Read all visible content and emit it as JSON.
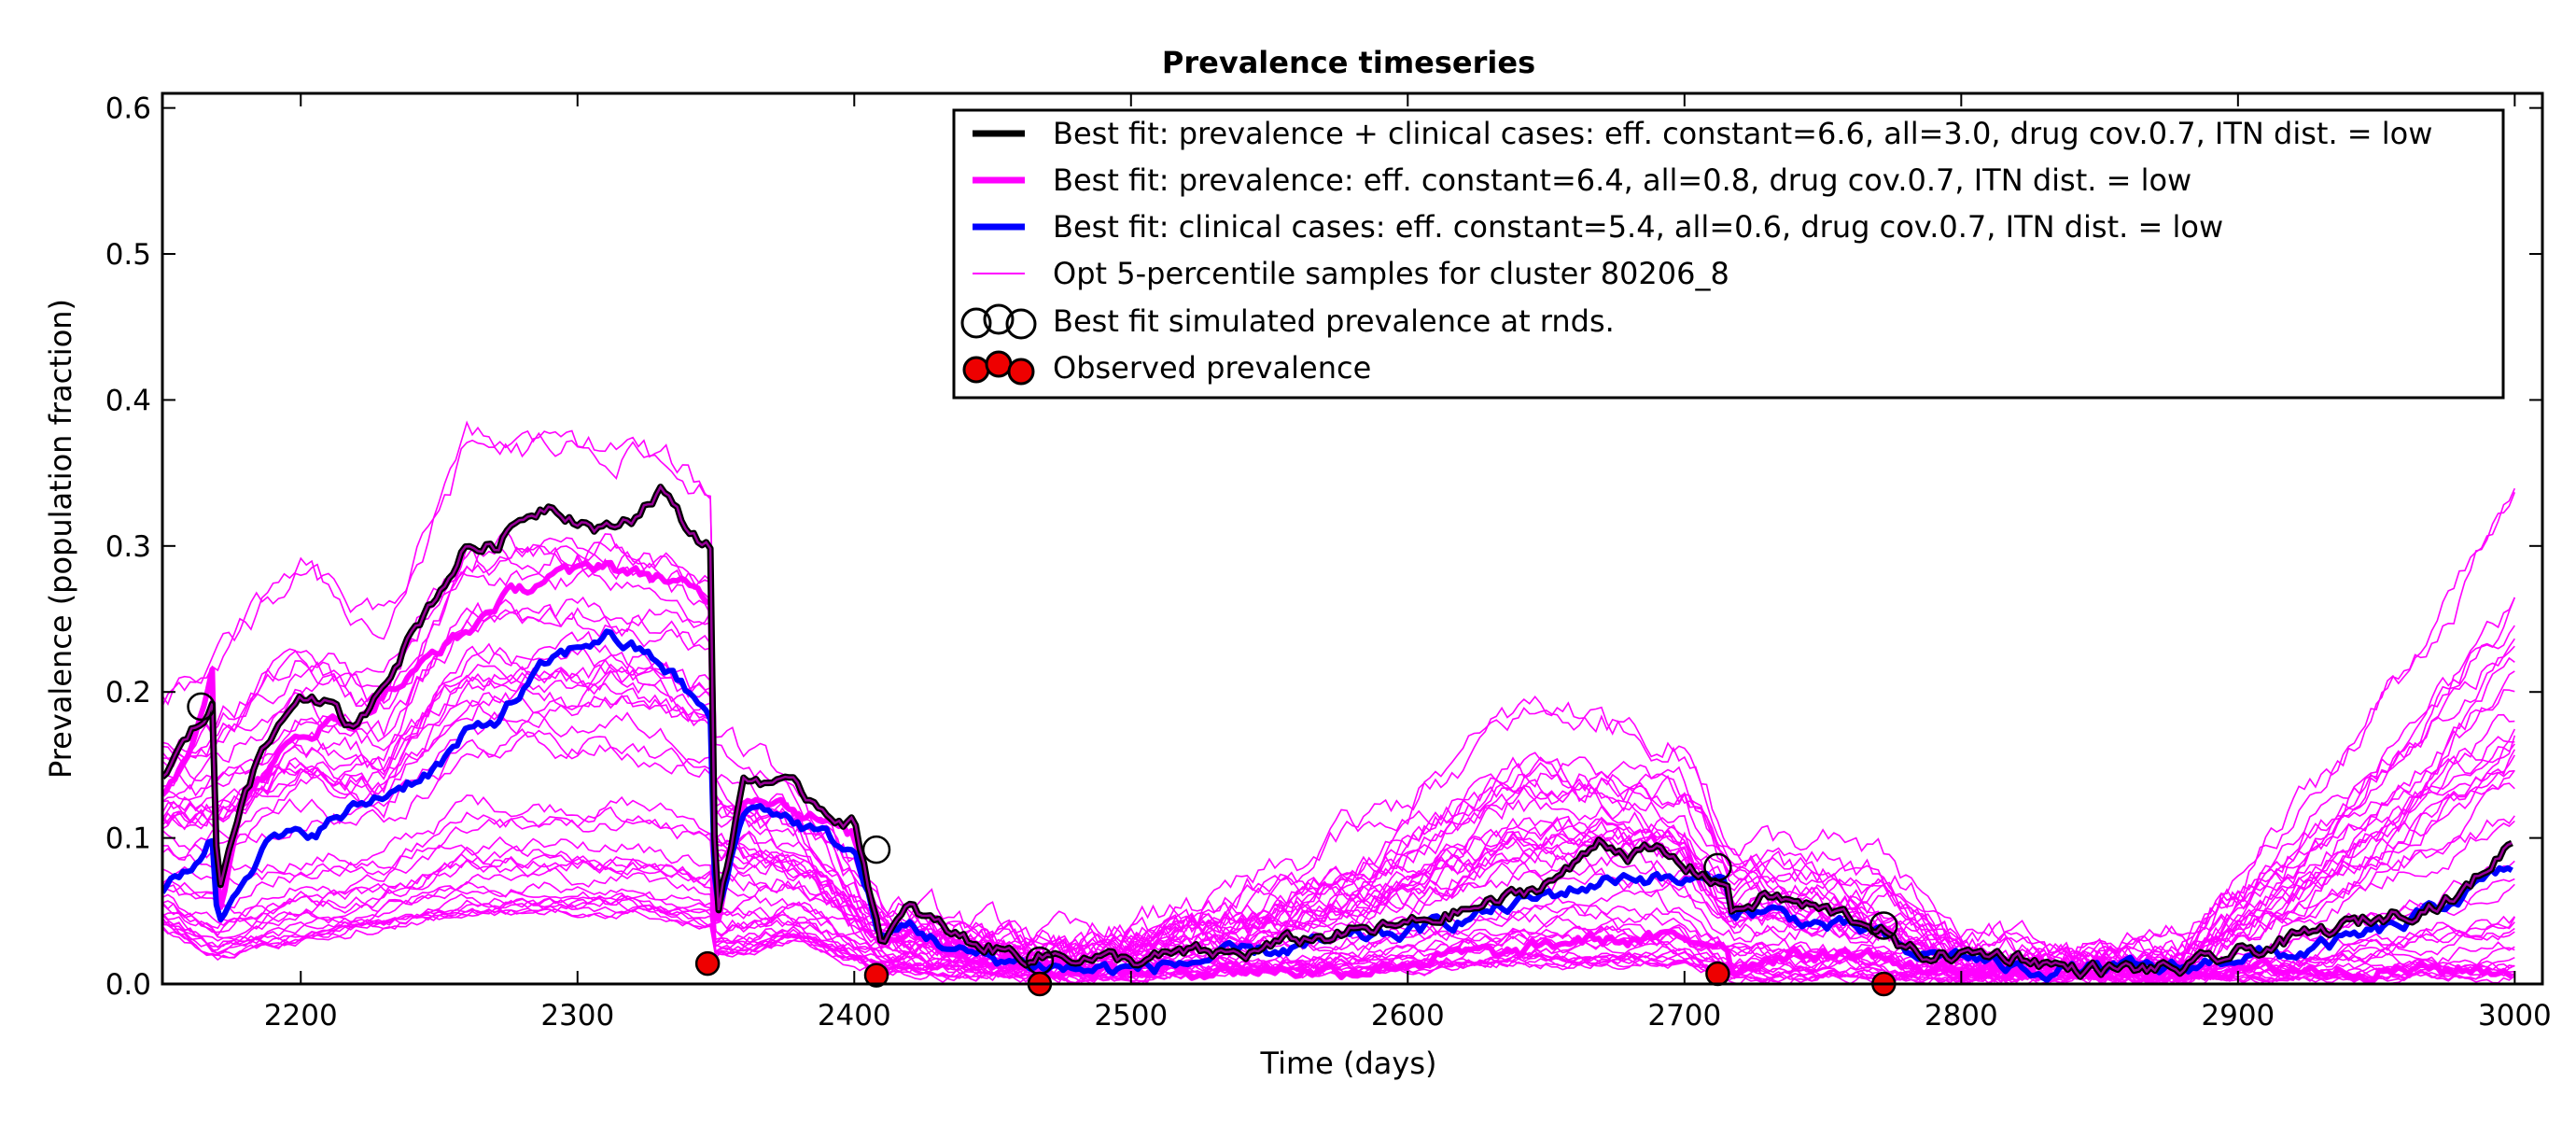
{
  "chart_data": {
    "type": "line",
    "title": "Prevalence timeseries",
    "xlabel": "Time (days)",
    "ylabel": "Prevalence (population fraction)",
    "xlim": [
      2150,
      3010
    ],
    "ylim": [
      0.0,
      0.61
    ],
    "x_ticks": [
      2200,
      2300,
      2400,
      2500,
      2600,
      2700,
      2800,
      2900,
      3000
    ],
    "y_ticks": [
      0.0,
      0.1,
      0.2,
      0.3,
      0.4,
      0.5,
      0.6
    ],
    "grid": false,
    "legend_position": "top-right",
    "colors": {
      "best_fit_combined": "#000000",
      "best_fit_prevalence": "#ff00ff",
      "best_fit_clinical": "#0000ff",
      "samples": "#ff00ff",
      "observed": "#ee0000"
    },
    "series": [
      {
        "name": "Best fit: prevalence + clinical cases: eff. constant=6.6, all=3.0, drug cov.0.7, ITN dist. = low",
        "style": "thick-black",
        "x": [
          2150,
          2160,
          2168,
          2170,
          2180,
          2190,
          2200,
          2210,
          2220,
          2230,
          2240,
          2250,
          2260,
          2270,
          2280,
          2290,
          2300,
          2310,
          2320,
          2330,
          2340,
          2348,
          2350,
          2360,
          2370,
          2380,
          2390,
          2400,
          2410,
          2420,
          2440,
          2460,
          2480,
          2500,
          2520,
          2540,
          2560,
          2580,
          2600,
          2620,
          2640,
          2660,
          2670,
          2680,
          2690,
          2700,
          2715,
          2717,
          2730,
          2750,
          2770,
          2780,
          2800,
          2820,
          2840,
          2860,
          2880,
          2900,
          2920,
          2940,
          2960,
          2980,
          2990,
          3000
        ],
        "y": [
          0.14,
          0.17,
          0.19,
          0.06,
          0.14,
          0.17,
          0.2,
          0.19,
          0.17,
          0.21,
          0.24,
          0.27,
          0.3,
          0.3,
          0.32,
          0.33,
          0.32,
          0.31,
          0.32,
          0.34,
          0.31,
          0.3,
          0.04,
          0.14,
          0.14,
          0.13,
          0.12,
          0.11,
          0.03,
          0.05,
          0.03,
          0.02,
          0.02,
          0.015,
          0.02,
          0.02,
          0.03,
          0.035,
          0.04,
          0.05,
          0.06,
          0.08,
          0.1,
          0.09,
          0.09,
          0.08,
          0.07,
          0.05,
          0.06,
          0.05,
          0.04,
          0.02,
          0.02,
          0.02,
          0.01,
          0.01,
          0.01,
          0.02,
          0.03,
          0.04,
          0.05,
          0.06,
          0.08,
          0.1
        ]
      },
      {
        "name": "Best fit: prevalence: eff. constant=6.4, all=0.8, drug cov.0.7, ITN dist. = low",
        "style": "thick-magenta",
        "x": [
          2150,
          2160,
          2168,
          2170,
          2180,
          2190,
          2200,
          2210,
          2220,
          2230,
          2240,
          2250,
          2260,
          2270,
          2280,
          2290,
          2300,
          2310,
          2320,
          2330,
          2340,
          2348,
          2350,
          2360,
          2370,
          2380,
          2390,
          2400,
          2410,
          2420,
          2440,
          2460,
          2480,
          2500,
          2520,
          2540,
          2560,
          2580,
          2600,
          2620,
          2640,
          2660,
          2680,
          2700,
          2715,
          2717,
          2730,
          2750,
          2770,
          2780,
          2800,
          2820,
          2840,
          2860,
          2880,
          2900,
          2920,
          2940,
          2960,
          2980,
          2990,
          3000
        ],
        "y": [
          0.13,
          0.16,
          0.22,
          0.05,
          0.13,
          0.15,
          0.17,
          0.18,
          0.18,
          0.2,
          0.21,
          0.23,
          0.24,
          0.26,
          0.27,
          0.28,
          0.28,
          0.29,
          0.28,
          0.28,
          0.27,
          0.26,
          0.04,
          0.13,
          0.13,
          0.12,
          0.11,
          0.1,
          0.03,
          0.04,
          0.02,
          0.015,
          0.01,
          0.01,
          0.01,
          0.01,
          0.01,
          0.01,
          0.015,
          0.02,
          0.02,
          0.03,
          0.03,
          0.03,
          0.03,
          0.01,
          0.02,
          0.02,
          0.02,
          0.01,
          0.01,
          0.01,
          0.01,
          0.01,
          0.01,
          0.01,
          0.01,
          0.01,
          0.01,
          0.01,
          0.01,
          0.01
        ]
      },
      {
        "name": "Best fit: clinical cases: eff. constant=5.4, all=0.6, drug cov.0.7, ITN dist. = low",
        "style": "thick-blue",
        "x": [
          2150,
          2160,
          2168,
          2170,
          2180,
          2190,
          2200,
          2210,
          2220,
          2230,
          2240,
          2250,
          2260,
          2270,
          2280,
          2290,
          2300,
          2310,
          2320,
          2330,
          2340,
          2348,
          2350,
          2360,
          2370,
          2380,
          2390,
          2400,
          2410,
          2420,
          2440,
          2460,
          2480,
          2500,
          2520,
          2540,
          2560,
          2580,
          2600,
          2620,
          2640,
          2660,
          2680,
          2700,
          2715,
          2717,
          2730,
          2750,
          2770,
          2780,
          2800,
          2820,
          2840,
          2860,
          2880,
          2900,
          2920,
          2940,
          2960,
          2980,
          2990,
          3000
        ],
        "y": [
          0.06,
          0.08,
          0.1,
          0.04,
          0.08,
          0.1,
          0.1,
          0.11,
          0.12,
          0.13,
          0.14,
          0.15,
          0.17,
          0.18,
          0.2,
          0.22,
          0.23,
          0.24,
          0.23,
          0.22,
          0.2,
          0.18,
          0.04,
          0.12,
          0.12,
          0.11,
          0.1,
          0.09,
          0.03,
          0.04,
          0.02,
          0.015,
          0.01,
          0.01,
          0.015,
          0.02,
          0.025,
          0.03,
          0.035,
          0.045,
          0.055,
          0.065,
          0.075,
          0.07,
          0.07,
          0.05,
          0.05,
          0.04,
          0.035,
          0.02,
          0.02,
          0.01,
          0.01,
          0.01,
          0.01,
          0.02,
          0.02,
          0.03,
          0.04,
          0.06,
          0.07,
          0.08
        ]
      }
    ],
    "samples_series": {
      "name": "Opt 5-percentile samples for cluster 80206_8",
      "x": [
        2150,
        2170,
        2200,
        2230,
        2260,
        2290,
        2320,
        2348,
        2350,
        2380,
        2410,
        2440,
        2480,
        2520,
        2560,
        2600,
        2640,
        2670,
        2700,
        2717,
        2750,
        2775,
        2800,
        2840,
        2880,
        2920,
        2960,
        3000
      ],
      "envelope_low": [
        0.04,
        0.02,
        0.03,
        0.04,
        0.05,
        0.05,
        0.05,
        0.04,
        0.02,
        0.03,
        0.01,
        0.01,
        0.005,
        0.01,
        0.01,
        0.01,
        0.015,
        0.015,
        0.015,
        0.005,
        0.005,
        0.005,
        0.005,
        0.005,
        0.005,
        0.005,
        0.005,
        0.005
      ],
      "envelope_high": [
        0.2,
        0.23,
        0.29,
        0.25,
        0.38,
        0.38,
        0.38,
        0.35,
        0.17,
        0.14,
        0.06,
        0.04,
        0.03,
        0.05,
        0.08,
        0.13,
        0.19,
        0.19,
        0.17,
        0.1,
        0.1,
        0.08,
        0.03,
        0.02,
        0.03,
        0.12,
        0.22,
        0.34
      ]
    },
    "simulated_points": {
      "name": "Best fit simulated prevalence at rnds.",
      "x": [
        2164,
        2408,
        2467,
        2712,
        2772
      ],
      "y": [
        0.19,
        0.092,
        0.016,
        0.08,
        0.04
      ]
    },
    "observed_points": {
      "name": "Observed prevalence",
      "x": [
        2347,
        2408,
        2467,
        2712,
        2772
      ],
      "y": [
        0.014,
        0.006,
        0.0,
        0.007,
        0.0
      ]
    }
  }
}
